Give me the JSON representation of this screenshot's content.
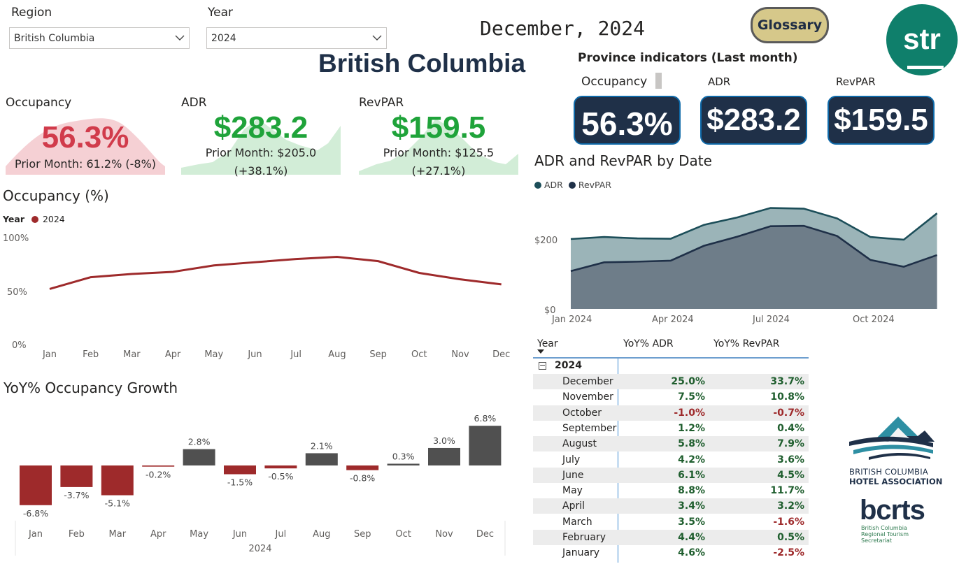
{
  "filters": {
    "region_label": "Region",
    "region_value": "British Columbia",
    "year_label": "Year",
    "year_value": "2024"
  },
  "header": {
    "date": "December, 2024",
    "glossary": "Glossary",
    "title": "British Columbia",
    "str_logo": "str"
  },
  "kpis": {
    "occupancy": {
      "label": "Occupancy",
      "value": "56.3%",
      "prior": "Prior Month: 61.2% (-8%)",
      "color": "#d13b4b"
    },
    "adr": {
      "label": "ADR",
      "value": "$283.2",
      "prior": "Prior Month: $205.0",
      "change": "(+38.1%)",
      "color": "#1fa33a"
    },
    "revpar": {
      "label": "RevPAR",
      "value": "$159.5",
      "prior": "Prior Month: $125.5",
      "change": "(+27.1%)",
      "color": "#1fa33a"
    }
  },
  "province": {
    "title": "Province indicators (Last month)",
    "occupancy_label": "Occupancy",
    "adr_label": "ADR",
    "revpar_label": "RevPAR",
    "occupancy_value": "56.3%",
    "adr_value": "$283.2",
    "revpar_value": "$159.5"
  },
  "occupancy_chart": {
    "title": "Occupancy (%)",
    "legend_title": "Year",
    "legend_item": "2024",
    "y_ticks": [
      "100%",
      "50%",
      "0%"
    ],
    "color": "#9e2a2b"
  },
  "adr_chart": {
    "title": "ADR and RevPAR by Date",
    "legend": [
      "ADR",
      "RevPAR"
    ],
    "y_ticks": [
      "$200",
      "$0"
    ],
    "x_ticks": [
      "Jan 2024",
      "Apr 2024",
      "Jul 2024",
      "Oct 2024"
    ],
    "colors": {
      "adr": "#1c4e59",
      "revpar": "#1f3048"
    }
  },
  "yoy_chart": {
    "title": "YoY% Occupancy Growth",
    "x_title": "2024",
    "colors": {
      "negative": "#9e2a2b",
      "positive": "#505050"
    }
  },
  "table": {
    "headers": [
      "Year",
      "YoY% ADR",
      "YoY% RevPAR"
    ],
    "year": "2024",
    "rows": [
      {
        "month": "December",
        "adr": "25.0%",
        "revpar": "33.7%"
      },
      {
        "month": "November",
        "adr": "7.5%",
        "revpar": "10.8%"
      },
      {
        "month": "October",
        "adr": "-1.0%",
        "revpar": "-0.7%"
      },
      {
        "month": "September",
        "adr": "1.2%",
        "revpar": "0.4%"
      },
      {
        "month": "August",
        "adr": "5.8%",
        "revpar": "7.9%"
      },
      {
        "month": "July",
        "adr": "4.2%",
        "revpar": "3.6%"
      },
      {
        "month": "June",
        "adr": "6.1%",
        "revpar": "4.5%"
      },
      {
        "month": "May",
        "adr": "8.8%",
        "revpar": "11.7%"
      },
      {
        "month": "April",
        "adr": "3.4%",
        "revpar": "3.2%"
      },
      {
        "month": "March",
        "adr": "3.5%",
        "revpar": "-1.6%"
      },
      {
        "month": "February",
        "adr": "4.4%",
        "revpar": "0.5%"
      },
      {
        "month": "January",
        "adr": "4.6%",
        "revpar": "-2.5%"
      }
    ],
    "positive_color": "#1f5e2e",
    "negative_color": "#9e2a2b"
  },
  "logos": {
    "bcha_line1": "BRITISH COLUMBIA",
    "bcha_line2": "HOTEL ASSOCIATION",
    "bcrts": "bcrts",
    "bcrts_sub1": "British Columbia",
    "bcrts_sub2": "Regional Tourism",
    "bcrts_sub3": "Secretariat"
  },
  "chart_data": [
    {
      "type": "line",
      "title": "Occupancy (%)",
      "x": [
        "Jan",
        "Feb",
        "Mar",
        "Apr",
        "May",
        "Jun",
        "Jul",
        "Aug",
        "Sep",
        "Oct",
        "Nov",
        "Dec"
      ],
      "series": [
        {
          "name": "2024",
          "values": [
            52,
            63,
            66,
            68,
            74,
            77,
            80,
            82,
            78,
            67,
            61,
            56.3
          ]
        }
      ],
      "ylim": [
        0,
        100
      ]
    },
    {
      "type": "area",
      "title": "ADR and RevPAR by Date",
      "x": [
        "Jan 2024",
        "Feb 2024",
        "Mar 2024",
        "Apr 2024",
        "May 2024",
        "Jun 2024",
        "Jul 2024",
        "Aug 2024",
        "Sep 2024",
        "Oct 2024",
        "Nov 2024",
        "Dec 2024"
      ],
      "series": [
        {
          "name": "ADR",
          "values": [
            207,
            213,
            209,
            208,
            249,
            271,
            299,
            297,
            268,
            213,
            205,
            283.2
          ]
        },
        {
          "name": "RevPAR",
          "values": [
            112,
            138,
            140,
            143,
            187,
            214,
            245,
            246,
            216,
            145,
            125,
            159.5
          ]
        }
      ],
      "ylim": [
        0,
        330
      ]
    },
    {
      "type": "bar",
      "title": "YoY% Occupancy Growth",
      "categories": [
        "Jan",
        "Feb",
        "Mar",
        "Apr",
        "May",
        "Jun",
        "Jul",
        "Aug",
        "Sep",
        "Oct",
        "Nov",
        "Dec"
      ],
      "values": [
        -6.8,
        -3.7,
        -5.1,
        -0.2,
        2.8,
        -1.5,
        -0.5,
        2.1,
        -0.8,
        0.3,
        3.0,
        6.8
      ],
      "labels": [
        "-6.8%",
        "-3.7%",
        "-5.1%",
        "-0.2%",
        "2.8%",
        "-1.5%",
        "-0.5%",
        "2.1%",
        "-0.8%",
        "0.3%",
        "3.0%",
        "6.8%"
      ],
      "xlabel": "2024"
    }
  ]
}
